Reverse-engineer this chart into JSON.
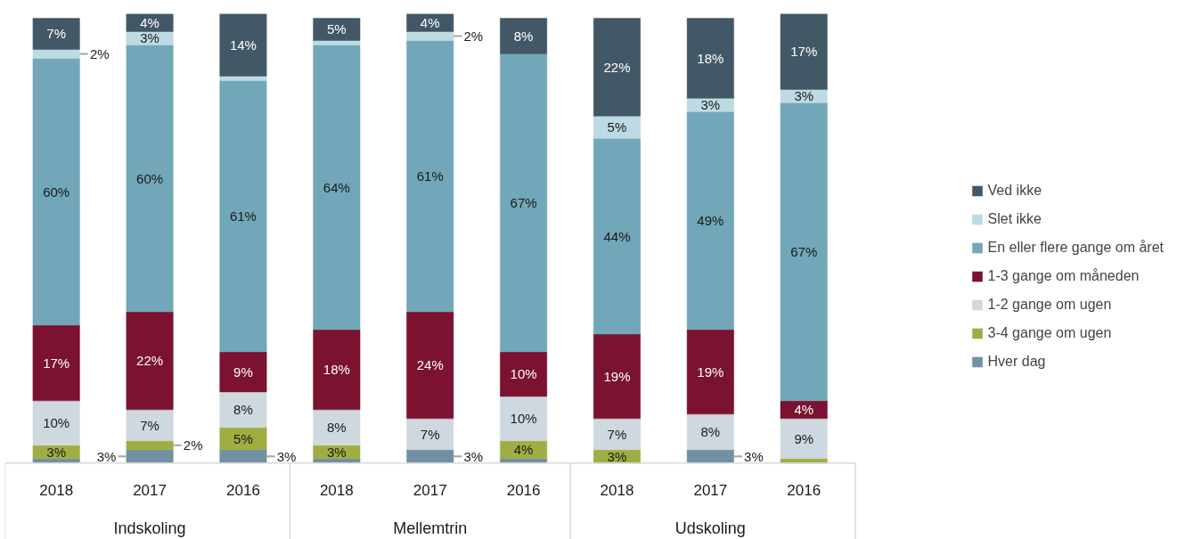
{
  "chart_data": {
    "type": "bar",
    "stacked": true,
    "legend": "right",
    "grid": false,
    "categories": [
      "2018",
      "2017",
      "2016",
      "2018",
      "2017",
      "2016",
      "2018",
      "2017",
      "2016"
    ],
    "annotations": [
      "Indskoling",
      "Mellemtrin",
      "Udskoling"
    ],
    "series": [
      {
        "name": "Hver dag",
        "color": "#7190a3",
        "values": [
          1,
          3,
          3,
          1,
          3,
          1,
          0,
          3,
          0
        ],
        "value_labels": [
          null,
          "3%",
          "3%",
          null,
          "3%",
          null,
          null,
          "3%",
          null
        ]
      },
      {
        "name": "3-4 gange om ugen",
        "color": "#a0ad42",
        "values": [
          3,
          2,
          5,
          3,
          0,
          4,
          3,
          0,
          1
        ],
        "value_labels": [
          "3%",
          "2%",
          "5%",
          "3%",
          null,
          "4%",
          "3%",
          null,
          null
        ]
      },
      {
        "name": "1-2 gange om ugen",
        "color": "#ced8df",
        "values": [
          10,
          7,
          8,
          8,
          7,
          10,
          7,
          8,
          9
        ],
        "value_labels": [
          "10%",
          "7%",
          "8%",
          "8%",
          "7%",
          "10%",
          "7%",
          "8%",
          "9%"
        ]
      },
      {
        "name": "1-3 gange om måneden",
        "color": "#7a1230",
        "values": [
          17,
          22,
          9,
          18,
          24,
          10,
          19,
          19,
          4
        ],
        "value_labels": [
          "17%",
          "22%",
          "9%",
          "18%",
          "24%",
          "10%",
          "19%",
          "19%",
          "4%"
        ]
      },
      {
        "name": "En eller flere gange om året",
        "color": "#71a7b9",
        "values": [
          60,
          60,
          61,
          64,
          61,
          67,
          44,
          49,
          67
        ],
        "value_labels": [
          "60%",
          "60%",
          "61%",
          "64%",
          "61%",
          "67%",
          "44%",
          "49%",
          "67%"
        ]
      },
      {
        "name": "Slet ikke",
        "color": "#bddbe3",
        "values": [
          2,
          3,
          1,
          1,
          2,
          0,
          5,
          3,
          3
        ],
        "value_labels": [
          "2%",
          "3%",
          null,
          null,
          "2%",
          null,
          "5%",
          "3%",
          "3%"
        ]
      },
      {
        "name": "Ved ikke",
        "color": "#435866",
        "values": [
          7,
          4,
          14,
          5,
          4,
          8,
          22,
          18,
          17
        ],
        "value_labels": [
          "7%",
          "4%",
          "14%",
          "5%",
          "4%",
          "8%",
          "22%",
          "18%",
          "17%"
        ]
      }
    ]
  }
}
